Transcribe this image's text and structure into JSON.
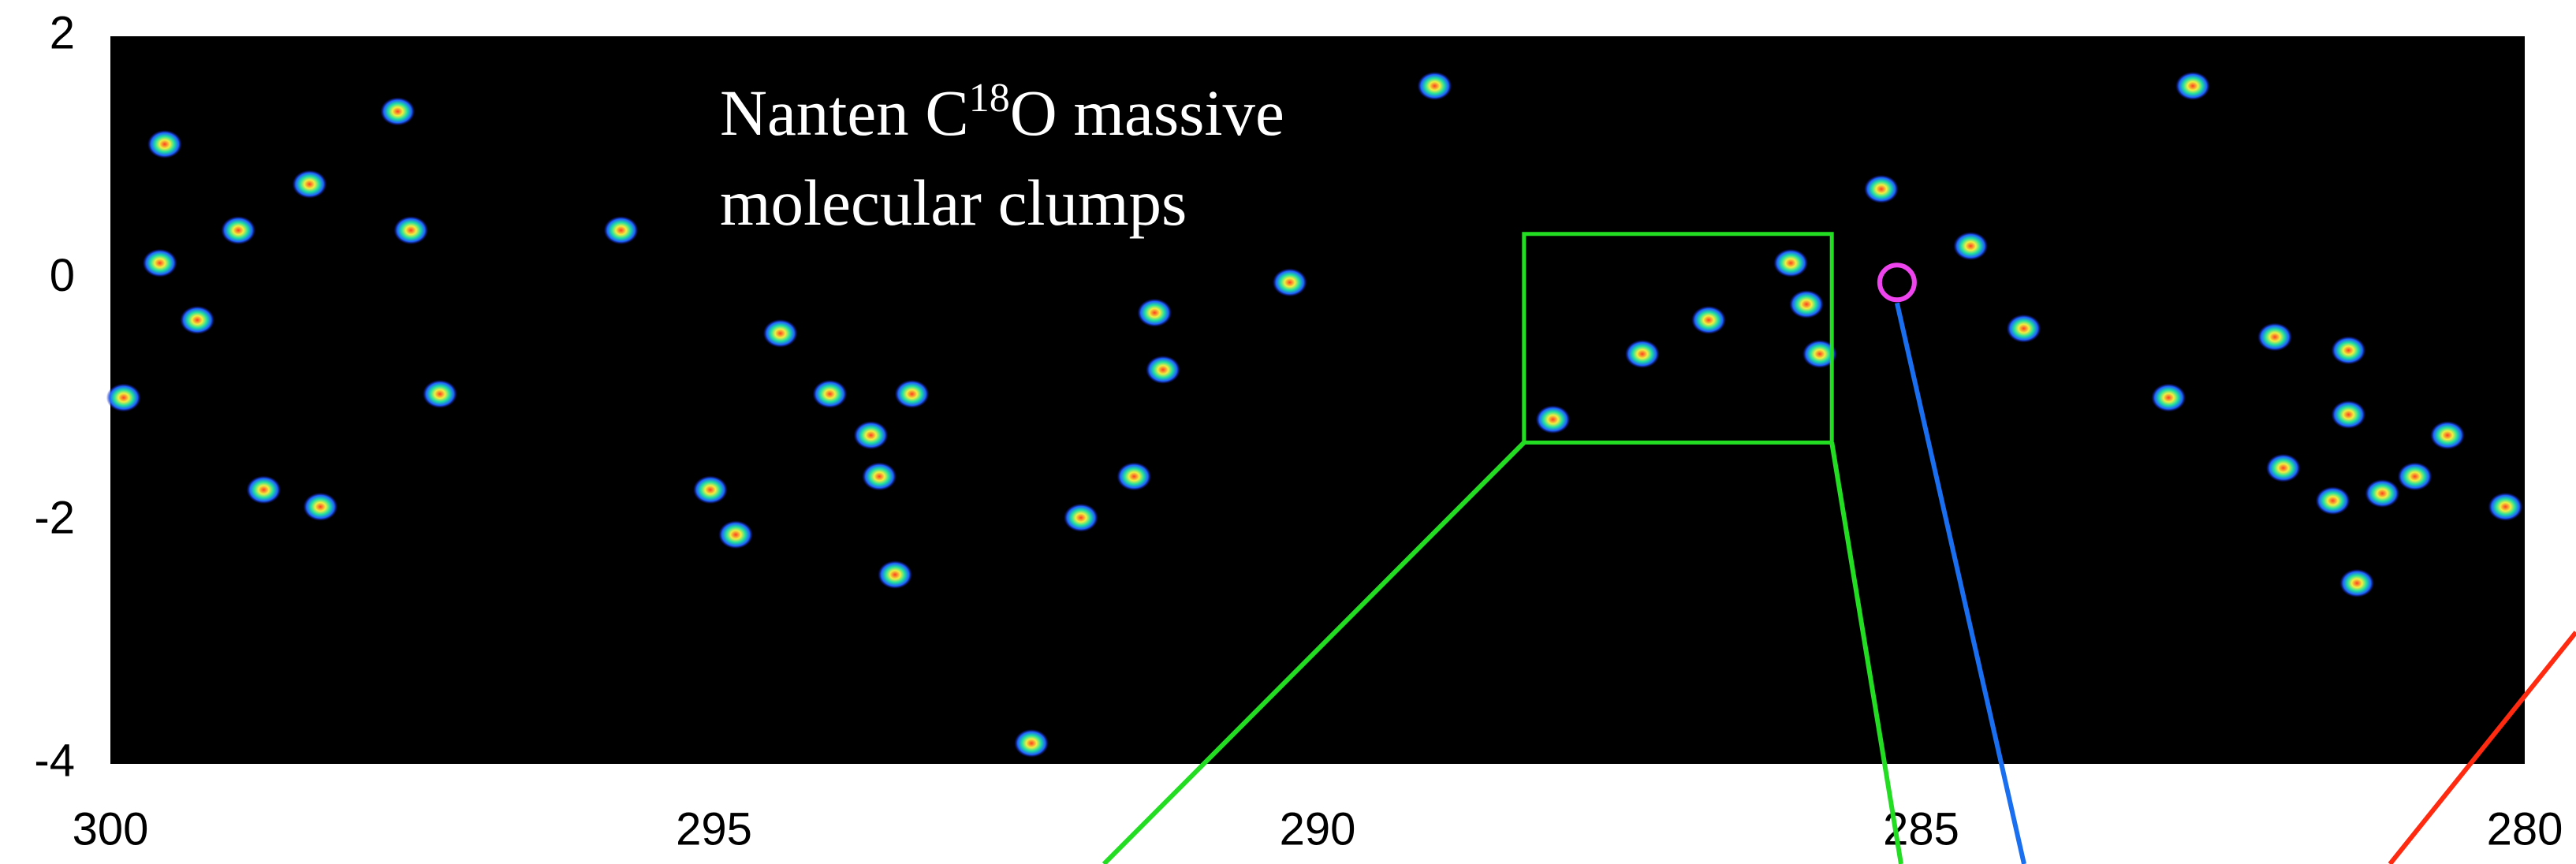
{
  "chart_data": {
    "type": "scatter",
    "annotation": {
      "lines": [
        [
          "Nanten C",
          "18",
          "O massive"
        ],
        [
          "molecular clumps"
        ]
      ]
    },
    "xlim": [
      300,
      280
    ],
    "xticks": [
      300,
      295,
      290,
      285,
      280
    ],
    "ylim": [
      -4,
      2
    ],
    "yticks": [
      2,
      0,
      -2,
      -4
    ],
    "x": [
      299.59,
      299.28,
      298.94,
      298.35,
      297.62,
      299.55,
      297.51,
      298.73,
      298.26,
      297.27,
      295.77,
      294.45,
      294.04,
      293.36,
      293.63,
      293.7,
      295.03,
      294.82,
      293.5,
      291.96,
      291.52,
      291.28,
      291.35,
      290.23,
      289.03,
      292.37,
      288.05,
      287.31,
      286.76,
      286.08,
      285.95,
      285.84,
      285.33,
      284.59,
      284.15,
      282.75,
      282.07,
      281.46,
      281.46,
      282.0,
      280.91,
      281.18,
      281.59,
      280.64,
      281.39,
      282.95,
      280.16,
      299.89
    ],
    "values": [
      0.13,
      -0.34,
      0.4,
      0.78,
      1.38,
      1.11,
      0.4,
      -1.74,
      -1.88,
      -0.95,
      0.4,
      -0.45,
      -0.95,
      -0.95,
      -1.63,
      -1.29,
      -1.74,
      -2.11,
      -2.44,
      -1.97,
      -1.63,
      -0.75,
      -0.28,
      -0.03,
      1.59,
      -3.83,
      -1.16,
      -0.62,
      -0.34,
      0.13,
      -0.21,
      -0.62,
      0.74,
      0.27,
      -0.41,
      1.59,
      -0.48,
      -0.59,
      -1.12,
      -1.56,
      -1.63,
      -1.77,
      -1.83,
      -1.29,
      -2.51,
      -0.98,
      -1.88,
      -0.98
    ],
    "highlight_box": {
      "xlim": [
        288.29,
        285.74
      ],
      "ylim": [
        -1.35,
        0.37
      ],
      "color": "#22dd22"
    },
    "highlight_circle": {
      "x": 285.2,
      "y": -0.03,
      "color": "#ee44ee"
    }
  }
}
